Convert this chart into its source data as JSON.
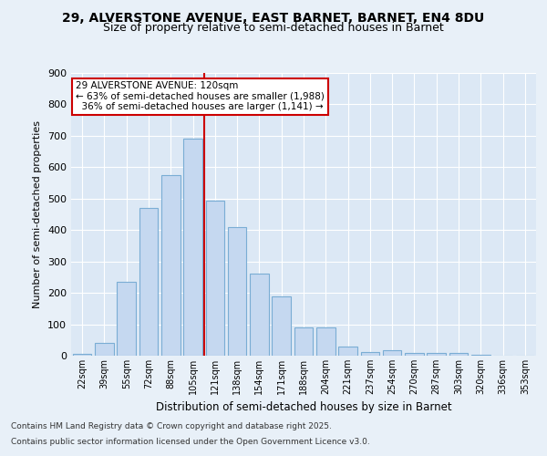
{
  "title_line1": "29, ALVERSTONE AVENUE, EAST BARNET, BARNET, EN4 8DU",
  "title_line2": "Size of property relative to semi-detached houses in Barnet",
  "xlabel": "Distribution of semi-detached houses by size in Barnet",
  "ylabel": "Number of semi-detached properties",
  "categories": [
    "22sqm",
    "39sqm",
    "55sqm",
    "72sqm",
    "88sqm",
    "105sqm",
    "121sqm",
    "138sqm",
    "154sqm",
    "171sqm",
    "188sqm",
    "204sqm",
    "221sqm",
    "237sqm",
    "254sqm",
    "270sqm",
    "287sqm",
    "303sqm",
    "320sqm",
    "336sqm",
    "353sqm"
  ],
  "values": [
    5,
    40,
    235,
    470,
    575,
    690,
    495,
    410,
    260,
    190,
    90,
    90,
    30,
    12,
    17,
    10,
    10,
    10,
    2,
    0,
    0
  ],
  "bar_color": "#c5d8f0",
  "bar_edge_color": "#7aadd4",
  "vline_color": "#cc0000",
  "annotation_text": "29 ALVERSTONE AVENUE: 120sqm\n← 63% of semi-detached houses are smaller (1,988)\n  36% of semi-detached houses are larger (1,141) →",
  "annotation_box_color": "#ffffff",
  "annotation_box_edge": "#cc0000",
  "footnote1": "Contains HM Land Registry data © Crown copyright and database right 2025.",
  "footnote2": "Contains public sector information licensed under the Open Government Licence v3.0.",
  "bg_color": "#e8f0f8",
  "plot_bg_color": "#dce8f5",
  "ylim": [
    0,
    900
  ],
  "yticks": [
    0,
    100,
    200,
    300,
    400,
    500,
    600,
    700,
    800,
    900
  ]
}
